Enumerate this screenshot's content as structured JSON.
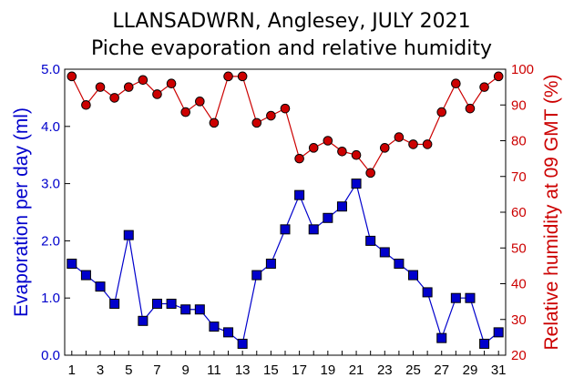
{
  "chart_data": {
    "type": "line",
    "title": "LLANSADWRN, Anglesey, JULY 2021",
    "subtitle": "Piche evaporation and relative humidity",
    "xlabel": "",
    "ylabel": "Evaporation per day (ml)",
    "y2label": "Relative humidity at 09 GMT (%)",
    "x": [
      1,
      2,
      3,
      4,
      5,
      6,
      7,
      8,
      9,
      10,
      11,
      12,
      13,
      14,
      15,
      16,
      17,
      18,
      19,
      20,
      21,
      22,
      23,
      24,
      25,
      26,
      27,
      28,
      29,
      30,
      31
    ],
    "xticks": [
      "1",
      "3",
      "5",
      "7",
      "9",
      "11",
      "13",
      "15",
      "17",
      "19",
      "21",
      "23",
      "25",
      "27",
      "29",
      "31"
    ],
    "ylim": [
      0,
      5
    ],
    "yticks": [
      "0.0",
      "1.0",
      "2.0",
      "3.0",
      "4.0",
      "5.0"
    ],
    "y2lim": [
      20,
      100
    ],
    "y2ticks": [
      "20",
      "30",
      "40",
      "50",
      "60",
      "70",
      "80",
      "90",
      "100"
    ],
    "grid": false,
    "series": [
      {
        "axis": "left",
        "color": "#0000cc",
        "marker": "square",
        "values": [
          1.6,
          1.4,
          1.2,
          0.9,
          2.1,
          0.6,
          0.9,
          0.9,
          0.8,
          0.8,
          0.5,
          0.4,
          0.2,
          1.4,
          1.6,
          2.2,
          2.8,
          2.2,
          2.4,
          2.6,
          3.0,
          2.0,
          1.8,
          1.6,
          1.4,
          1.1,
          0.3,
          1.0,
          1.0,
          0.2,
          0.4
        ]
      },
      {
        "axis": "right",
        "color": "#cc0000",
        "marker": "circle",
        "values": [
          98,
          90,
          95,
          92,
          95,
          97,
          93,
          96,
          88,
          91,
          85,
          98,
          98,
          85,
          87,
          89,
          75,
          78,
          80,
          77,
          76,
          71,
          78,
          81,
          79,
          79,
          88,
          96,
          89,
          95,
          98
        ]
      }
    ]
  }
}
